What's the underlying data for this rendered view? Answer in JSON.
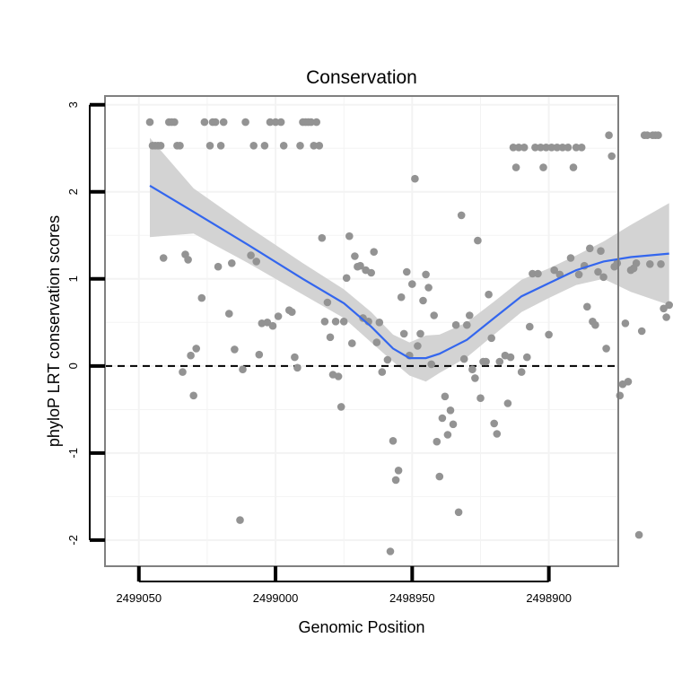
{
  "chart_data": {
    "type": "scatter",
    "title": "Conservation",
    "xlabel": "Genomic Position",
    "ylabel": "phyloP LRT conservation scores",
    "x_reversed": true,
    "xlim": [
      2499062.4,
      2498874.6
    ],
    "ylim": [
      -2.3,
      3.1
    ],
    "x_ticks": [
      2499050,
      2499000,
      2498950,
      2498900
    ],
    "x_tick_labels": [
      "2499050",
      "2499000",
      "2498950",
      "2498900"
    ],
    "y_ticks": [
      -2,
      -1,
      0,
      1,
      2,
      3
    ],
    "y_tick_labels": [
      "-2",
      "-1",
      "0",
      "1",
      "2",
      "3"
    ],
    "grid": true,
    "reference_line": {
      "y": 0,
      "style": "dashed",
      "color": "#000000"
    },
    "colors": {
      "points": "#939393",
      "smooth_line": "#3366ee",
      "confidence_band": "#d3d3d3",
      "grid": "#f3f3f3",
      "frame": "#808080"
    },
    "series": [
      {
        "kind": "points",
        "values": [
          [
            2499046,
            2.8
          ],
          [
            2499045,
            2.53
          ],
          [
            2499044,
            2.53
          ],
          [
            2499043,
            2.53
          ],
          [
            2499042,
            2.53
          ],
          [
            2499041,
            1.24
          ],
          [
            2499039,
            2.8
          ],
          [
            2499038,
            2.8
          ],
          [
            2499037,
            2.8
          ],
          [
            2499036,
            2.53
          ],
          [
            2499035,
            2.53
          ],
          [
            2499034,
            -0.07
          ],
          [
            2499033,
            1.28
          ],
          [
            2499032,
            1.22
          ],
          [
            2499031,
            0.12
          ],
          [
            2499030,
            -0.34
          ],
          [
            2499029,
            0.2
          ],
          [
            2499027,
            0.78
          ],
          [
            2499026,
            2.8
          ],
          [
            2499024,
            2.53
          ],
          [
            2499023,
            2.8
          ],
          [
            2499022,
            2.8
          ],
          [
            2499021,
            1.14
          ],
          [
            2499020,
            2.53
          ],
          [
            2499019,
            2.8
          ],
          [
            2499017,
            0.6
          ],
          [
            2499016,
            1.18
          ],
          [
            2499015,
            0.19
          ],
          [
            2499013,
            -1.77
          ],
          [
            2499012,
            -0.04
          ],
          [
            2499011,
            2.8
          ],
          [
            2499009,
            1.27
          ],
          [
            2499008,
            2.53
          ],
          [
            2499007,
            1.2
          ],
          [
            2499006,
            0.13
          ],
          [
            2499005,
            0.49
          ],
          [
            2499004,
            2.53
          ],
          [
            2499003,
            0.5
          ],
          [
            2499002,
            2.8
          ],
          [
            2499001,
            0.46
          ],
          [
            2499000,
            2.8
          ],
          [
            2498999,
            0.57
          ],
          [
            2498998,
            2.8
          ],
          [
            2498997,
            2.53
          ],
          [
            2498995,
            0.64
          ],
          [
            2498994,
            0.62
          ],
          [
            2498993,
            0.1
          ],
          [
            2498992,
            -0.02
          ],
          [
            2498991,
            2.53
          ],
          [
            2498990,
            2.8
          ],
          [
            2498989,
            2.8
          ],
          [
            2498988,
            2.8
          ],
          [
            2498987,
            2.8
          ],
          [
            2498986,
            2.53
          ],
          [
            2498985,
            2.8
          ],
          [
            2498984,
            2.53
          ],
          [
            2498983,
            1.47
          ],
          [
            2498982,
            0.51
          ],
          [
            2498981,
            0.73
          ],
          [
            2498980,
            0.33
          ],
          [
            2498979,
            -0.1
          ],
          [
            2498978,
            0.51
          ],
          [
            2498977,
            -0.12
          ],
          [
            2498976,
            -0.47
          ],
          [
            2498975,
            0.51
          ],
          [
            2498974,
            1.01
          ],
          [
            2498973,
            1.49
          ],
          [
            2498972,
            0.26
          ],
          [
            2498971,
            1.26
          ],
          [
            2498970,
            1.14
          ],
          [
            2498969,
            1.15
          ],
          [
            2498968,
            0.55
          ],
          [
            2498967,
            1.1
          ],
          [
            2498966,
            0.51
          ],
          [
            2498965,
            1.07
          ],
          [
            2498964,
            1.31
          ],
          [
            2498963,
            0.27
          ],
          [
            2498962,
            0.5
          ],
          [
            2498961,
            -0.07
          ],
          [
            2498959,
            0.07
          ],
          [
            2498958,
            -2.13
          ],
          [
            2498957,
            -0.86
          ],
          [
            2498956,
            -1.31
          ],
          [
            2498955,
            -1.2
          ],
          [
            2498954,
            0.79
          ],
          [
            2498953,
            0.37
          ],
          [
            2498952,
            1.08
          ],
          [
            2498951,
            0.12
          ],
          [
            2498950,
            0.94
          ],
          [
            2498949,
            2.15
          ],
          [
            2498948,
            0.23
          ],
          [
            2498947,
            0.37
          ],
          [
            2498946,
            0.75
          ],
          [
            2498945,
            1.05
          ],
          [
            2498944,
            0.9
          ],
          [
            2498943,
            0.02
          ],
          [
            2498942,
            0.58
          ],
          [
            2498941,
            -0.87
          ],
          [
            2498940,
            -1.27
          ],
          [
            2498939,
            -0.6
          ],
          [
            2498938,
            -0.35
          ],
          [
            2498937,
            -0.79
          ],
          [
            2498936,
            -0.51
          ],
          [
            2498935,
            -0.67
          ],
          [
            2498934,
            0.47
          ],
          [
            2498933,
            -1.68
          ],
          [
            2498932,
            1.73
          ],
          [
            2498931,
            0.08
          ],
          [
            2498930,
            0.47
          ],
          [
            2498929,
            0.58
          ],
          [
            2498928,
            -0.04
          ],
          [
            2498927,
            -0.14
          ],
          [
            2498926,
            1.44
          ],
          [
            2498925,
            -0.37
          ],
          [
            2498924,
            0.05
          ],
          [
            2498923,
            0.05
          ],
          [
            2498922,
            0.82
          ],
          [
            2498921,
            0.32
          ],
          [
            2498920,
            -0.66
          ],
          [
            2498919,
            -0.78
          ],
          [
            2498918,
            0.05
          ],
          [
            2498916,
            0.12
          ],
          [
            2498915,
            -0.43
          ],
          [
            2498914,
            0.1
          ],
          [
            2498913,
            2.51
          ],
          [
            2498912,
            2.28
          ],
          [
            2498911,
            2.51
          ],
          [
            2498910,
            -0.07
          ],
          [
            2498909,
            2.51
          ],
          [
            2498908,
            0.1
          ],
          [
            2498907,
            0.45
          ],
          [
            2498906,
            1.06
          ],
          [
            2498905,
            2.51
          ],
          [
            2498904,
            1.06
          ],
          [
            2498903,
            2.51
          ],
          [
            2498902,
            2.28
          ],
          [
            2498901,
            2.51
          ],
          [
            2498900,
            0.36
          ],
          [
            2498899,
            2.51
          ],
          [
            2498898,
            1.1
          ],
          [
            2498897,
            2.51
          ],
          [
            2498896,
            1.05
          ],
          [
            2498895,
            2.51
          ],
          [
            2498893,
            2.51
          ],
          [
            2498892,
            1.24
          ],
          [
            2498891,
            2.28
          ],
          [
            2498890,
            2.51
          ],
          [
            2498889,
            1.05
          ],
          [
            2498888,
            2.51
          ],
          [
            2498887,
            1.15
          ],
          [
            2498886,
            0.68
          ],
          [
            2498885,
            1.35
          ],
          [
            2498884,
            0.51
          ],
          [
            2498883,
            0.47
          ],
          [
            2498882,
            1.08
          ],
          [
            2498881,
            1.32
          ],
          [
            2498880,
            1.02
          ],
          [
            2498879,
            0.2
          ],
          [
            2498878,
            2.65
          ],
          [
            2498877,
            2.41
          ],
          [
            2498876,
            1.14
          ]
        ]
      },
      {
        "kind": "points",
        "values": [
          [
            2498875,
            1.18
          ],
          [
            2498874,
            -0.34
          ],
          [
            2498873,
            -0.21
          ],
          [
            2498872,
            0.49
          ],
          [
            2498871,
            -0.18
          ],
          [
            2498870,
            1.1
          ],
          [
            2498869,
            1.12
          ],
          [
            2498868,
            1.18
          ],
          [
            2498867,
            -1.94
          ],
          [
            2498866,
            0.4
          ],
          [
            2498865,
            2.65
          ],
          [
            2498864,
            2.65
          ],
          [
            2498863,
            1.17
          ],
          [
            2498862,
            2.65
          ],
          [
            2498861,
            2.65
          ],
          [
            2498860,
            2.65
          ],
          [
            2498859,
            1.17
          ],
          [
            2498858,
            0.66
          ],
          [
            2498857,
            0.56
          ],
          [
            2498856,
            0.7
          ]
        ]
      },
      {
        "kind": "smooth",
        "name": "",
        "x": [
          2499046,
          2499030,
          2499010,
          2498990,
          2498975,
          2498965,
          2498957,
          2498951,
          2498945,
          2498940,
          2498930,
          2498920,
          2498910,
          2498900,
          2498890,
          2498880,
          2498870,
          2498856
        ],
        "y": [
          2.07,
          1.77,
          1.39,
          1.0,
          0.72,
          0.45,
          0.2,
          0.09,
          0.09,
          0.14,
          0.3,
          0.55,
          0.8,
          0.95,
          1.1,
          1.2,
          1.25,
          1.29
        ],
        "ci_lower": [
          1.48,
          1.52,
          1.18,
          0.82,
          0.55,
          0.27,
          0.05,
          -0.11,
          -0.18,
          -0.08,
          0.1,
          0.36,
          0.62,
          0.78,
          0.93,
          1.0,
          0.85,
          0.7
        ],
        "ci_upper": [
          2.62,
          2.04,
          1.6,
          1.18,
          0.88,
          0.62,
          0.36,
          0.27,
          0.35,
          0.36,
          0.5,
          0.74,
          0.99,
          1.12,
          1.27,
          1.43,
          1.62,
          1.87
        ]
      }
    ]
  }
}
